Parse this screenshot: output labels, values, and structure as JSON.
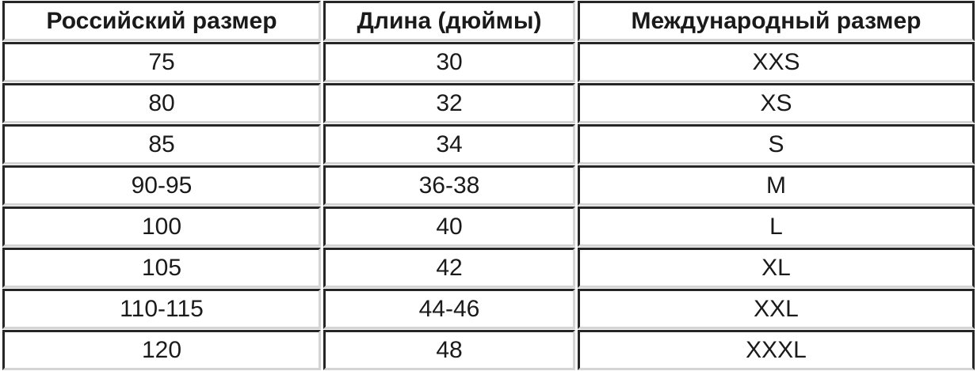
{
  "chart_data": {
    "type": "table",
    "columns": [
      "Российский размер",
      "Длина (дюймы)",
      "Международный размер"
    ],
    "rows": [
      [
        "75",
        "30",
        "XXS"
      ],
      [
        "80",
        "32",
        "XS"
      ],
      [
        "85",
        "34",
        "S"
      ],
      [
        "90-95",
        "36-38",
        "M"
      ],
      [
        "100",
        "40",
        "L"
      ],
      [
        "105",
        "42",
        "XL"
      ],
      [
        "110-115",
        "44-46",
        "XXL"
      ],
      [
        "120",
        "48",
        "XXXL"
      ]
    ],
    "layout": {
      "grid": "on",
      "last_row_clipped": true
    }
  },
  "colors": {
    "border_dark": "#262626",
    "border_light": "#d4d4d4",
    "text": "#1a1a1a",
    "background": "#ffffff"
  }
}
